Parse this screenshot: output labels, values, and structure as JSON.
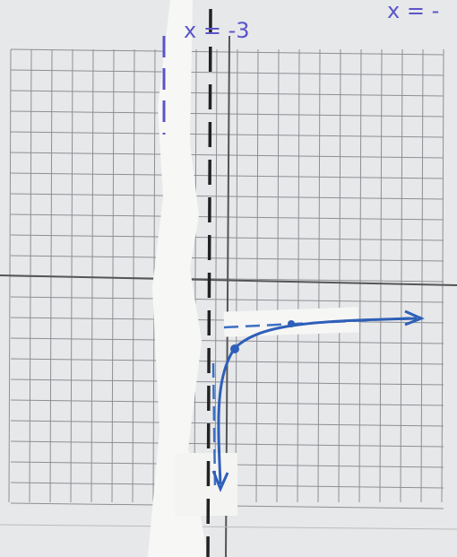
{
  "annotations": {
    "left": "x = -3",
    "right": "x = -"
  }
}
